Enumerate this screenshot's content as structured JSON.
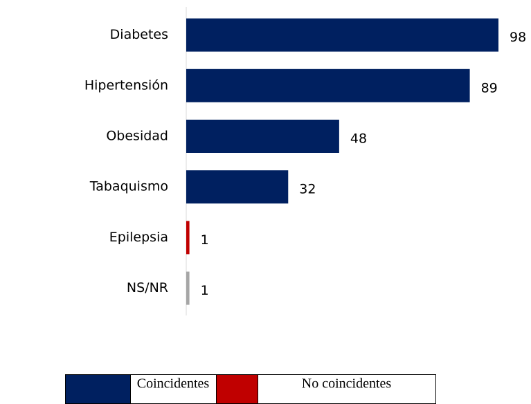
{
  "chart_data": {
    "type": "bar",
    "orientation": "horizontal",
    "categories": [
      "Diabetes",
      "Hipertensión",
      "Obesidad",
      "Tabaquismo",
      "Epilepsia",
      "NS/NR"
    ],
    "values": [
      98,
      89,
      48,
      32,
      1,
      1
    ],
    "colors": [
      "#002060",
      "#002060",
      "#002060",
      "#002060",
      "#c00000",
      "#a6a6a6"
    ],
    "legend": [
      {
        "name": "Coincidentes",
        "color": "#002060"
      },
      {
        "name": "No coincidentes",
        "color": "#c00000"
      }
    ]
  }
}
